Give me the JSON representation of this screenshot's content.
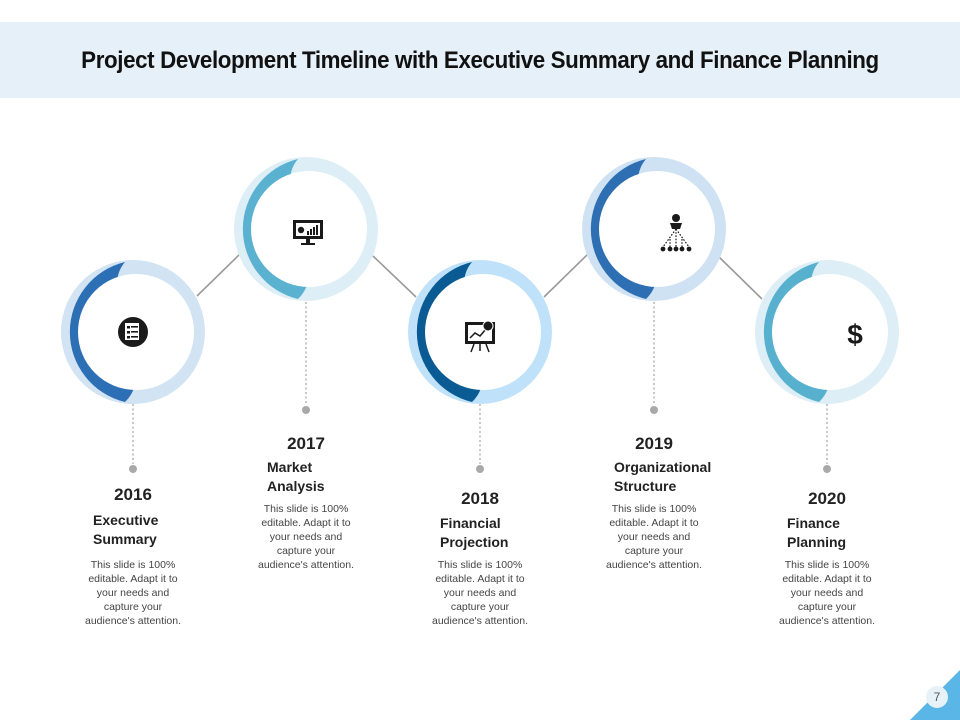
{
  "title": "Project Development Timeline with Executive Summary and Finance Planning",
  "page_number": "7",
  "colors": {
    "header_bg": "#e5f0f8",
    "connector": "#9a9a9a",
    "icon": "#1a1a1a"
  },
  "milestones": [
    {
      "year": "2016",
      "label_line1": "Executive",
      "label_line2": "Summary",
      "description": [
        "This slide is 100%",
        "editable. Adapt it to",
        "your needs and",
        "capture your",
        "audience's attention."
      ],
      "icon": "checklist-icon",
      "accent": "#2d6fb4",
      "ring": "#d2e3f3"
    },
    {
      "year": "2017",
      "label_line1": "Market",
      "label_line2": "Analysis",
      "description": [
        "This slide is 100%",
        "editable. Adapt it to",
        "your needs and",
        "capture your",
        "audience's attention."
      ],
      "icon": "analytics-monitor-icon",
      "accent": "#5ab1d0",
      "ring": "#ddeef6"
    },
    {
      "year": "2018",
      "label_line1": "Financial",
      "label_line2": "Projection",
      "description": [
        "This slide is 100%",
        "editable. Adapt it to",
        "your needs and",
        "capture your",
        "audience's attention."
      ],
      "icon": "presentation-board-icon",
      "accent": "#0a5a93",
      "ring": "#bfe2fa"
    },
    {
      "year": "2019",
      "label_line1": "Organizational",
      "label_line2": "Structure",
      "description": [
        "This slide is 100%",
        "editable. Adapt it to",
        "your needs and",
        "capture your",
        "audience's attention."
      ],
      "icon": "org-chart-icon",
      "accent": "#2e6fb3",
      "ring": "#cfe2f3"
    },
    {
      "year": "2020",
      "label_line1": "Finance",
      "label_line2": "Planning",
      "description": [
        "This slide is 100%",
        "editable. Adapt it to",
        "your needs and",
        "capture your",
        "audience's attention."
      ],
      "icon": "dollar-icon",
      "icon_text": "$",
      "accent": "#58b0cf",
      "ring": "#ddeef6"
    }
  ]
}
